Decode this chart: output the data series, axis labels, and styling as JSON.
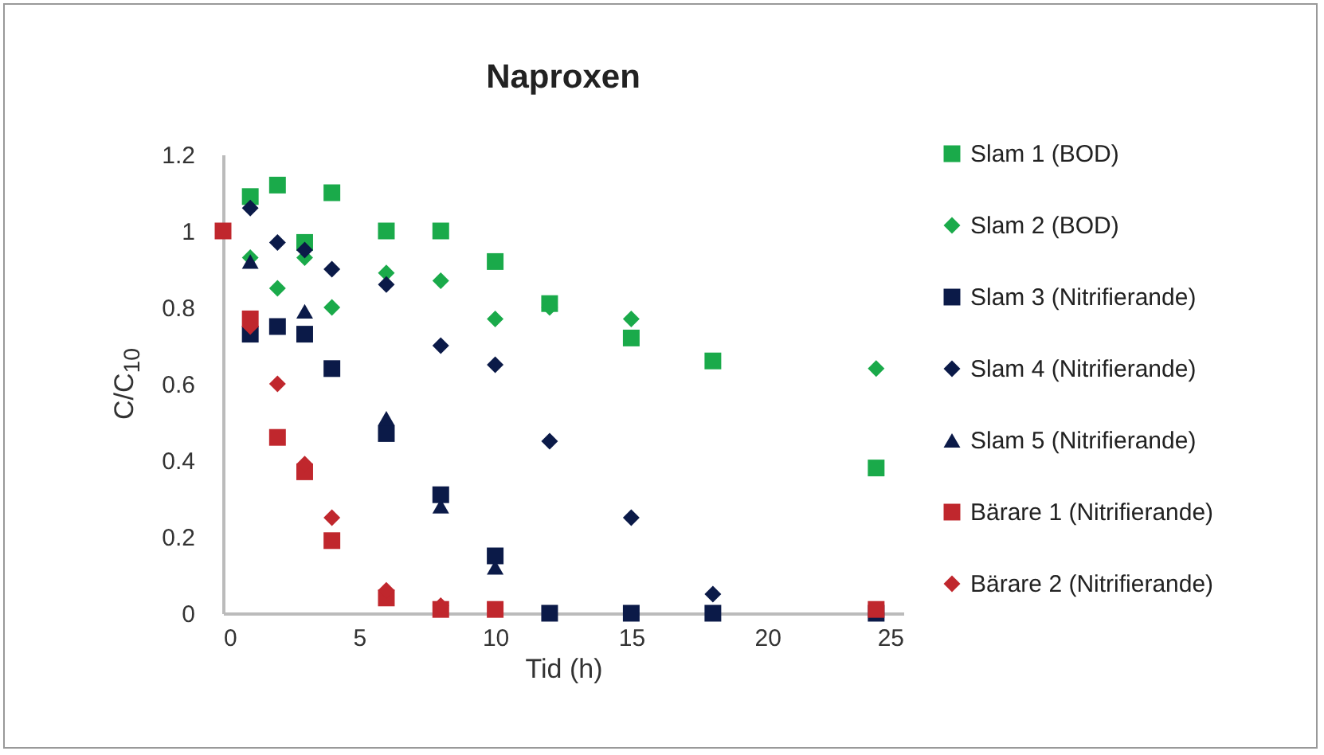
{
  "chart_data": {
    "type": "scatter",
    "title": "Naproxen",
    "xlabel": "Tid (h)",
    "ylabel": "C/C$_{10}$",
    "xlim": [
      0,
      25
    ],
    "xticks": [
      0,
      5,
      10,
      15,
      20,
      25
    ],
    "ylim": [
      0,
      1.2
    ],
    "yticks": [
      0,
      0.2,
      0.4,
      0.6,
      0.8,
      1,
      1.2
    ],
    "grid": false,
    "legend": "right",
    "series": [
      {
        "name": "Slam 1 (BOD)",
        "color": "#1aaa4a",
        "marker": "square",
        "x": [
          1,
          2,
          3,
          4,
          6,
          8,
          10,
          12,
          15,
          18,
          24
        ],
        "values": [
          1.09,
          1.12,
          0.97,
          1.1,
          1.0,
          1.0,
          0.92,
          0.81,
          0.72,
          0.66,
          0.38
        ]
      },
      {
        "name": "Slam 2 (BOD)",
        "color": "#1aaa4a",
        "marker": "diamond",
        "x": [
          1,
          2,
          3,
          4,
          6,
          8,
          10,
          12,
          15,
          24
        ],
        "values": [
          0.93,
          0.85,
          0.93,
          0.8,
          0.89,
          0.87,
          0.77,
          0.8,
          0.77,
          0.64
        ]
      },
      {
        "name": "Slam 3 (Nitrifierande)",
        "color": "#0b1a48",
        "marker": "square",
        "x": [
          1,
          2,
          3,
          4,
          6,
          8,
          10,
          12,
          15,
          18,
          24
        ],
        "values": [
          0.73,
          0.75,
          0.73,
          0.64,
          0.47,
          0.31,
          0.15,
          0,
          0,
          0,
          0
        ]
      },
      {
        "name": "Slam 4 (Nitrifierande)",
        "color": "#0b1a48",
        "marker": "diamond",
        "x": [
          1,
          2,
          3,
          4,
          6,
          8,
          10,
          12,
          15,
          18
        ],
        "values": [
          1.06,
          0.97,
          0.95,
          0.9,
          0.86,
          0.7,
          0.65,
          0.45,
          0.25,
          0.05
        ]
      },
      {
        "name": "Slam 5 (Nitrifierande)",
        "color": "#0b1a48",
        "marker": "triangle",
        "x": [
          1,
          3,
          6,
          8,
          10
        ],
        "values": [
          0.92,
          0.79,
          0.51,
          0.28,
          0.12
        ]
      },
      {
        "name": "Bärare 1 (Nitrifierande)",
        "color": "#c0272d",
        "marker": "square",
        "x": [
          0,
          1,
          2,
          3,
          4,
          6,
          8,
          10,
          24
        ],
        "values": [
          1.0,
          0.77,
          0.46,
          0.37,
          0.19,
          0.04,
          0.01,
          0.01,
          0.01
        ]
      },
      {
        "name": "Bärare 2 (Nitrifierande)",
        "color": "#c0272d",
        "marker": "diamond",
        "x": [
          1,
          2,
          3,
          4,
          6,
          8
        ],
        "values": [
          0.75,
          0.6,
          0.39,
          0.25,
          0.06,
          0.02
        ]
      }
    ]
  }
}
